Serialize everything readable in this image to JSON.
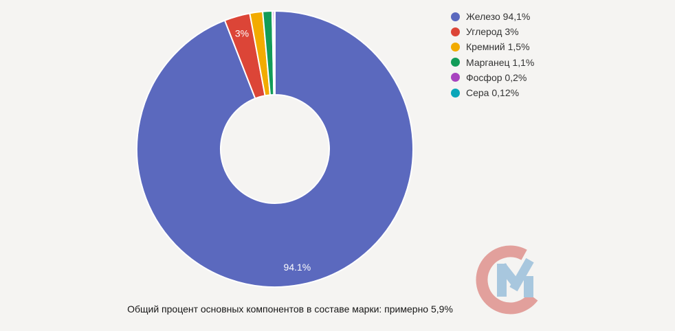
{
  "page": {
    "background": "#F5F4F2",
    "caption": "Общий процент основных компонентов в составе марки: примерно 5,9%"
  },
  "chart_data": {
    "type": "pie",
    "style": "donut",
    "hole_ratio": 0.39,
    "unit": "%",
    "legend_position": "right",
    "slices": [
      {
        "name": "Железо",
        "value": 94.1,
        "display": "94,1%",
        "legend_label": "Железо 94,1%",
        "slice_label": "94.1%",
        "color": "#5B69BE"
      },
      {
        "name": "Углерод",
        "value": 3,
        "display": "3%",
        "legend_label": "Углерод 3%",
        "slice_label": "3%",
        "color": "#DC4537"
      },
      {
        "name": "Кремний",
        "value": 1.5,
        "display": "1,5%",
        "legend_label": "Кремний 1,5%",
        "slice_label": "",
        "color": "#F2AB00"
      },
      {
        "name": "Марганец",
        "value": 1.1,
        "display": "1,1%",
        "legend_label": "Марганец 1,1%",
        "slice_label": "",
        "color": "#129C58"
      },
      {
        "name": "Фосфор",
        "value": 0.2,
        "display": "0,2%",
        "legend_label": "Фосфор 0,2%",
        "slice_label": "",
        "color": "#A843BF"
      },
      {
        "name": "Сера",
        "value": 0.12,
        "display": "0,12%",
        "legend_label": "Сера 0,12%",
        "slice_label": "",
        "color": "#0AA6B9"
      }
    ],
    "slice_border_color": "#FFFFFF",
    "label_text_color": "#FFFFFF",
    "legend_text_color": "#333333"
  },
  "logo": {
    "name": "cm-watermark",
    "c_color": "#E2A09C",
    "m_color": "#A8C7DE"
  }
}
